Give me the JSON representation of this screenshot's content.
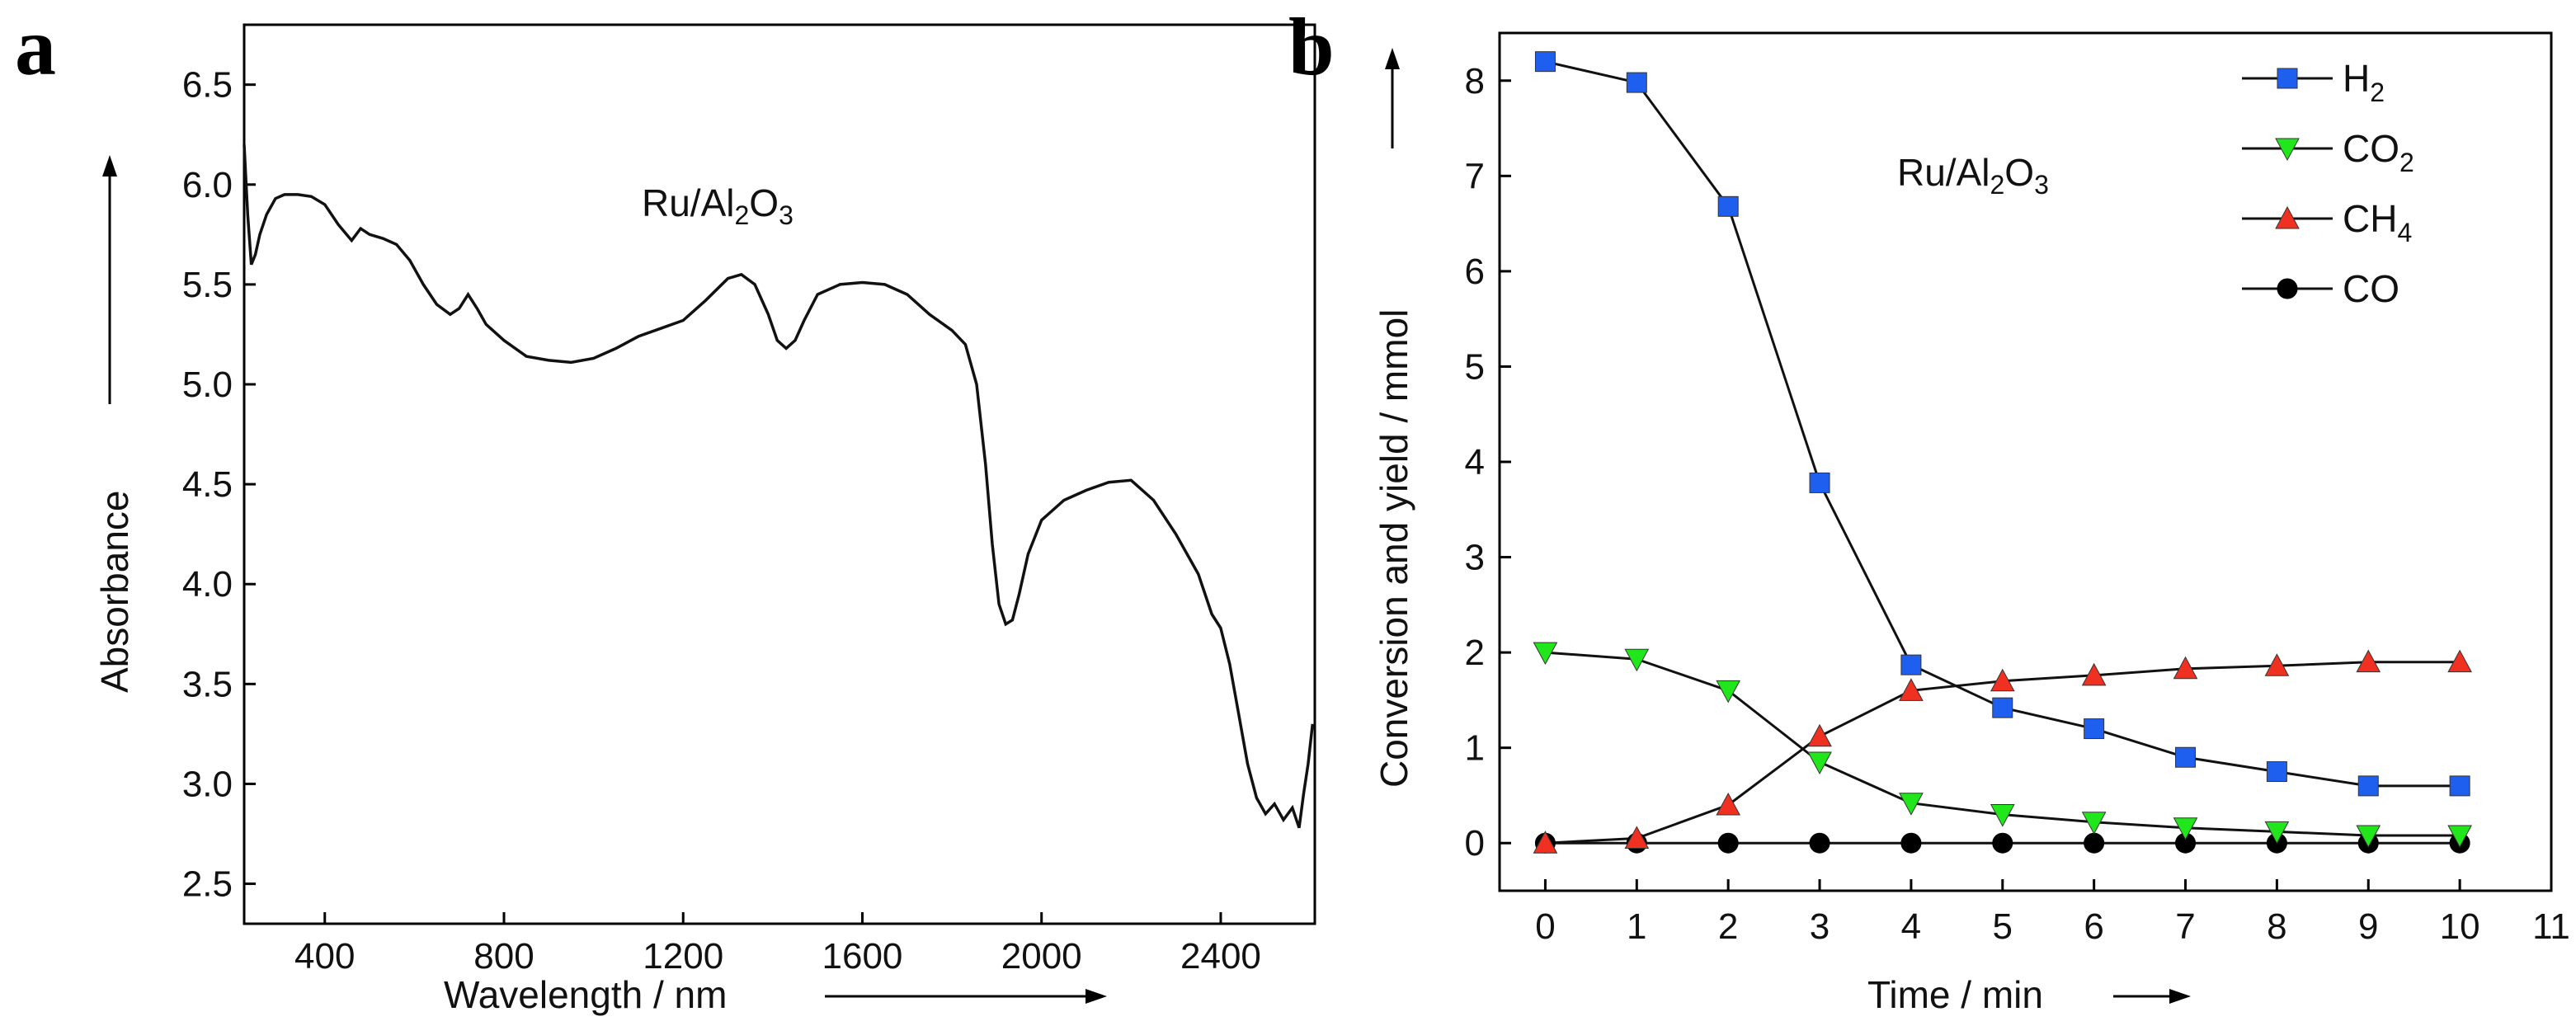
{
  "panels": {
    "a": {
      "letter": "a"
    },
    "b": {
      "letter": "b"
    }
  },
  "chart_data": [
    {
      "panel": "a",
      "type": "line",
      "annotation": {
        "prefix": "Ru/Al",
        "sub1": "2",
        "mid": "O",
        "sub2": "3"
      },
      "xlabel": "Wavelength / nm",
      "ylabel": "Absorbance",
      "xlim": [
        220,
        2610
      ],
      "ylim": [
        2.3,
        6.8
      ],
      "xticks": [
        400,
        800,
        1200,
        1600,
        2000,
        2400
      ],
      "yticks": [
        2.5,
        3.0,
        3.5,
        4.0,
        4.5,
        5.0,
        5.5,
        6.0,
        6.5
      ],
      "series": [
        {
          "name": "Ru/Al2O3 spectrum",
          "color": "#111111",
          "x": [
            220,
            228,
            236,
            245,
            255,
            270,
            290,
            310,
            340,
            370,
            400,
            430,
            460,
            480,
            500,
            530,
            560,
            590,
            620,
            650,
            680,
            700,
            720,
            740,
            760,
            800,
            850,
            900,
            950,
            1000,
            1050,
            1100,
            1150,
            1200,
            1250,
            1300,
            1330,
            1360,
            1390,
            1410,
            1430,
            1450,
            1470,
            1500,
            1550,
            1600,
            1650,
            1700,
            1750,
            1800,
            1830,
            1855,
            1875,
            1890,
            1905,
            1920,
            1935,
            1950,
            1970,
            2000,
            2050,
            2100,
            2150,
            2200,
            2250,
            2300,
            2350,
            2380,
            2400,
            2420,
            2440,
            2460,
            2480,
            2500,
            2520,
            2540,
            2560,
            2575,
            2585,
            2595,
            2605
          ],
          "values": [
            6.2,
            5.85,
            5.6,
            5.65,
            5.75,
            5.85,
            5.93,
            5.95,
            5.95,
            5.94,
            5.9,
            5.8,
            5.72,
            5.78,
            5.75,
            5.73,
            5.7,
            5.62,
            5.5,
            5.4,
            5.35,
            5.38,
            5.45,
            5.38,
            5.3,
            5.22,
            5.14,
            5.12,
            5.11,
            5.13,
            5.18,
            5.24,
            5.28,
            5.32,
            5.42,
            5.53,
            5.55,
            5.5,
            5.35,
            5.22,
            5.18,
            5.22,
            5.32,
            5.45,
            5.5,
            5.51,
            5.5,
            5.45,
            5.35,
            5.27,
            5.2,
            5.0,
            4.6,
            4.2,
            3.9,
            3.8,
            3.82,
            3.95,
            4.15,
            4.32,
            4.42,
            4.47,
            4.51,
            4.52,
            4.42,
            4.25,
            4.05,
            3.85,
            3.78,
            3.6,
            3.35,
            3.1,
            2.93,
            2.85,
            2.9,
            2.82,
            2.88,
            2.78,
            2.95,
            3.1,
            3.3
          ]
        }
      ]
    },
    {
      "panel": "b",
      "type": "line",
      "annotation": {
        "prefix": "Ru/Al",
        "sub1": "2",
        "mid": "O",
        "sub2": "3"
      },
      "xlabel": "Time / min",
      "ylabel": "Conversion and yield / mmol",
      "xlim": [
        -0.5,
        11
      ],
      "ylim": [
        -0.5,
        8.5
      ],
      "xticks": [
        0,
        1,
        2,
        3,
        4,
        5,
        6,
        7,
        8,
        9,
        10,
        11
      ],
      "yticks": [
        0,
        1,
        2,
        3,
        4,
        5,
        6,
        7,
        8
      ],
      "x": [
        0,
        1,
        2,
        3,
        4,
        5,
        6,
        7,
        8,
        9,
        10
      ],
      "legend_position": "top-right",
      "series": [
        {
          "name": "H",
          "sub": "2",
          "marker": "square",
          "color": "#1f5ff0",
          "values": [
            8.2,
            7.98,
            6.68,
            3.78,
            1.87,
            1.42,
            1.2,
            0.9,
            0.75,
            0.6,
            0.6
          ]
        },
        {
          "name": "CO",
          "sub": "2",
          "marker": "triangle-down",
          "color": "#22e61c",
          "values": [
            2.0,
            1.93,
            1.6,
            0.85,
            0.42,
            0.3,
            0.22,
            0.16,
            0.12,
            0.08,
            0.08
          ]
        },
        {
          "name": "CH",
          "sub": "4",
          "marker": "triangle-up",
          "color": "#f03020",
          "values": [
            0.0,
            0.05,
            0.4,
            1.12,
            1.6,
            1.7,
            1.76,
            1.83,
            1.86,
            1.9,
            1.9
          ]
        },
        {
          "name": "CO",
          "sub": "",
          "marker": "circle",
          "color": "#000000",
          "values": [
            0,
            0,
            0,
            0,
            0,
            0,
            0,
            0,
            0,
            0,
            0
          ]
        }
      ]
    }
  ]
}
